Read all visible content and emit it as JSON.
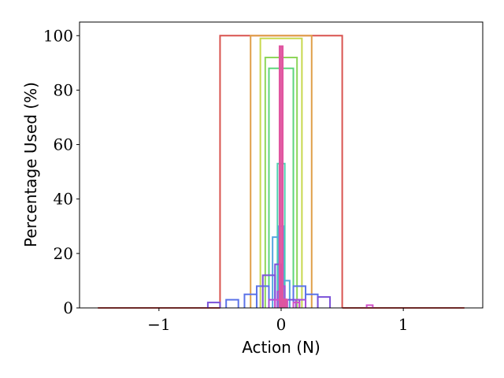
{
  "chart_data": {
    "type": "step",
    "xlabel": "Action (N)",
    "ylabel": "Percentage Used (%)",
    "xlim": [
      -1.65,
      1.65
    ],
    "ylim": [
      0,
      105
    ],
    "xticks": [
      {
        "value": -1,
        "label": "−1"
      },
      {
        "value": 0,
        "label": "0"
      },
      {
        "value": 1,
        "label": "1"
      }
    ],
    "yticks": [
      {
        "value": 0,
        "label": "0"
      },
      {
        "value": 20,
        "label": "20"
      },
      {
        "value": 40,
        "label": "40"
      },
      {
        "value": 60,
        "label": "60"
      },
      {
        "value": 80,
        "label": "80"
      },
      {
        "value": 100,
        "label": "100"
      }
    ],
    "grid": false,
    "legend": "none",
    "series": [
      {
        "color": "#d9534f",
        "bins": [
          [
            -1.5,
            -0.5,
            0
          ],
          [
            -0.5,
            0.5,
            100
          ],
          [
            0.5,
            1.5,
            0
          ]
        ]
      },
      {
        "color": "#e0a04a",
        "bins": [
          [
            -0.25,
            0.25,
            100
          ]
        ]
      },
      {
        "color": "#c8d84e",
        "bins": [
          [
            -0.17,
            0.17,
            99
          ]
        ]
      },
      {
        "color": "#8ed65a",
        "bins": [
          [
            -0.13,
            0.13,
            92
          ]
        ]
      },
      {
        "color": "#5dd67a",
        "bins": [
          [
            -0.1,
            0.1,
            88
          ]
        ]
      },
      {
        "color": "#4fd0b0",
        "bins": [
          [
            -0.03,
            0.03,
            53
          ]
        ]
      },
      {
        "color": "#55a7e0",
        "bins": [
          [
            -0.07,
            -0.02,
            26
          ],
          [
            -0.02,
            0.02,
            30
          ],
          [
            0.02,
            0.07,
            10
          ]
        ]
      },
      {
        "color": "#5b73e8",
        "bins": [
          [
            -0.45,
            -0.35,
            3
          ],
          [
            -0.3,
            -0.2,
            5
          ],
          [
            -0.2,
            -0.1,
            8
          ],
          [
            0.1,
            0.2,
            8
          ],
          [
            0.2,
            0.3,
            5
          ]
        ]
      },
      {
        "color": "#7a50d8",
        "bins": [
          [
            -0.6,
            -0.5,
            2
          ],
          [
            -0.15,
            -0.05,
            12
          ],
          [
            -0.05,
            0.0,
            16
          ],
          [
            0.05,
            0.15,
            3
          ],
          [
            0.3,
            0.4,
            4
          ]
        ]
      },
      {
        "color": "#a850d8",
        "bins": [
          [
            -0.1,
            -0.05,
            3
          ],
          [
            -0.03,
            0.0,
            6
          ],
          [
            0.0,
            0.03,
            8
          ],
          [
            0.12,
            0.2,
            3
          ]
        ]
      },
      {
        "color": "#d050c8",
        "bins": [
          [
            -0.05,
            0.05,
            3
          ],
          [
            0.1,
            0.15,
            2
          ],
          [
            0.7,
            0.75,
            1
          ]
        ]
      },
      {
        "color": "#e055a0",
        "bins": [
          [
            -0.01,
            0.01,
            96
          ],
          [
            0.02,
            0.04,
            3
          ]
        ]
      }
    ]
  }
}
